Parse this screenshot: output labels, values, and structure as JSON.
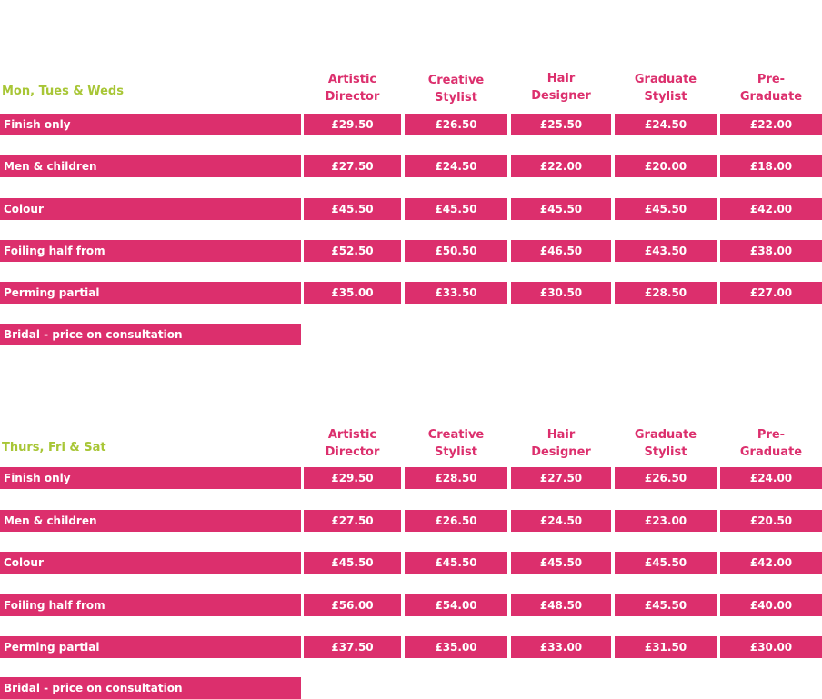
{
  "columns": [
    {
      "line1": "Artistic",
      "line2": "Director"
    },
    {
      "line1": "Creative",
      "line2": "Stylist"
    },
    {
      "line1": "Hair",
      "line2": "Designer"
    },
    {
      "line1": "Graduate",
      "line2": "Stylist"
    },
    {
      "line1": "Pre-",
      "line2": "Graduate"
    }
  ],
  "sections": [
    {
      "day_label": "Mon, Tues & Weds",
      "rows": [
        {
          "service": "Finish only",
          "prices": [
            "£29.50",
            "£26.50",
            "£25.50",
            "£24.50",
            "£22.00"
          ]
        },
        {
          "service": "Men & children",
          "prices": [
            "£27.50",
            "£24.50",
            "£22.00",
            "£20.00",
            "£18.00"
          ]
        },
        {
          "service": "Colour",
          "prices": [
            "£45.50",
            "£45.50",
            "£45.50",
            "£45.50",
            "£42.00"
          ]
        },
        {
          "service": "Foiling half from",
          "prices": [
            "£52.50",
            "£50.50",
            "£46.50",
            "£43.50",
            "£38.00"
          ]
        },
        {
          "service": "Perming partial",
          "prices": [
            "£35.00",
            "£33.50",
            "£30.50",
            "£28.50",
            "£27.00"
          ]
        }
      ],
      "bridal": "Bridal - price on consultation"
    },
    {
      "day_label": "Thurs, Fri & Sat",
      "rows": [
        {
          "service": "Finish only",
          "prices": [
            "£29.50",
            "£28.50",
            "£27.50",
            "£26.50",
            "£24.00"
          ]
        },
        {
          "service": "Men & children",
          "prices": [
            "£27.50",
            "£26.50",
            "£24.50",
            "£23.00",
            "£20.50"
          ]
        },
        {
          "service": "Colour",
          "prices": [
            "£45.50",
            "£45.50",
            "£45.50",
            "£45.50",
            "£42.00"
          ]
        },
        {
          "service": "Foiling half from",
          "prices": [
            "£56.00",
            "£54.00",
            "£48.50",
            "£45.50",
            "£40.00"
          ]
        },
        {
          "service": "Perming partial",
          "prices": [
            "£37.50",
            "£35.00",
            "£33.00",
            "£31.50",
            "£30.00"
          ]
        }
      ],
      "bridal": "Bridal - price on consultation"
    }
  ]
}
